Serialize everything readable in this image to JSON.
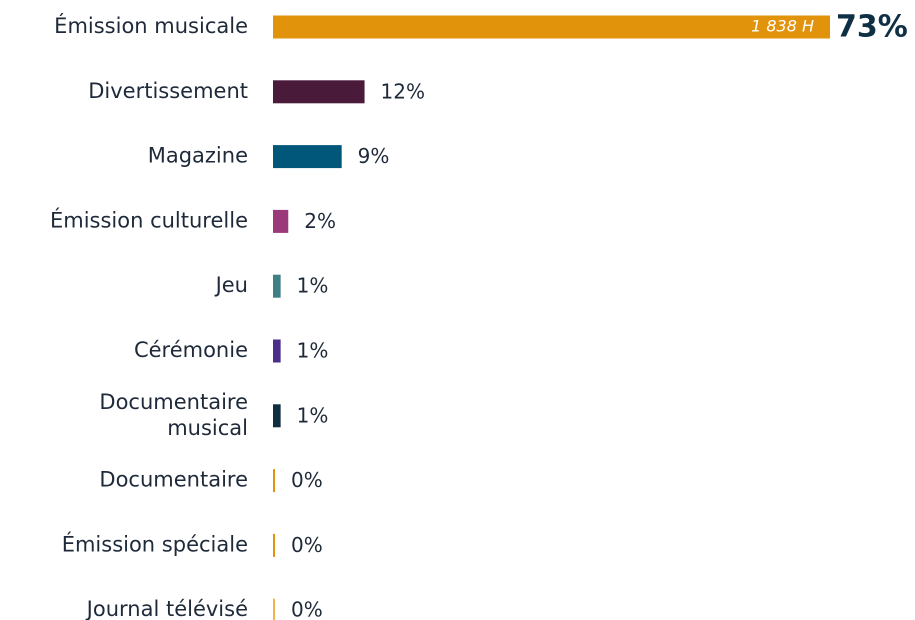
{
  "chart_data": {
    "type": "bar",
    "orientation": "horizontal",
    "categories": [
      "Émission musicale",
      "Divertissement",
      "Magazine",
      "Émission culturelle",
      "Jeu",
      "Cérémonie",
      "Documentaire\nmusical",
      "Documentaire",
      "Émission spéciale",
      "Journal télévisé"
    ],
    "values": [
      73,
      12,
      9,
      2,
      1,
      1,
      1,
      0,
      0,
      0
    ],
    "value_labels": [
      "73%",
      "12%",
      "9%",
      "2%",
      "1%",
      "1%",
      "1%",
      "0%",
      "0%",
      "0%"
    ],
    "colors": [
      "#e0930b",
      "#4a1a3a",
      "#00577a",
      "#9b3a7a",
      "#3f7f86",
      "#4a2e8a",
      "#0f2f40",
      "#e0930b",
      "#e0930b",
      "#eeb44a"
    ],
    "annotation": "1 838 H"
  }
}
